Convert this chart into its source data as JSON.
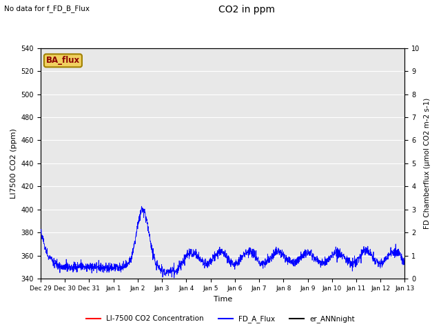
{
  "title": "CO2 in ppm",
  "top_left_text": "No data for f_FD_B_Flux",
  "ylabel_left": "LI7500 CO2 (ppm)",
  "ylabel_right": "FD Chamberflux (μmol CO2 m-2 s-1)",
  "xlabel": "Time",
  "ylim_left": [
    340,
    540
  ],
  "ylim_right": [
    0.0,
    10.0
  ],
  "yticks_left": [
    340,
    360,
    380,
    400,
    420,
    440,
    460,
    480,
    500,
    520,
    540
  ],
  "yticks_right": [
    0.0,
    1.0,
    2.0,
    3.0,
    4.0,
    5.0,
    6.0,
    7.0,
    8.0,
    9.0,
    10.0
  ],
  "bg_color": "#e8e8e8",
  "legend_items": [
    {
      "label": "LI-7500 CO2 Concentration",
      "color": "red"
    },
    {
      "label": "FD_A_Flux",
      "color": "blue"
    },
    {
      "label": "er_ANNnight",
      "color": "black"
    }
  ],
  "ba_flux_box": {
    "text": "BA_flux",
    "facecolor": "#f0d060",
    "edgecolor": "#a08000"
  },
  "xtick_labels": [
    "Dec 29",
    "Dec 30",
    "Dec 31",
    "Jan 1",
    "Jan 2",
    "Jan 3",
    "Jan 4",
    "Jan 5",
    "Jan 6",
    "Jan 7",
    "Jan 8",
    "Jan 9",
    "Jan 10",
    "Jan 11",
    "Jan 12",
    "Jan 13"
  ],
  "n_points": 2000
}
